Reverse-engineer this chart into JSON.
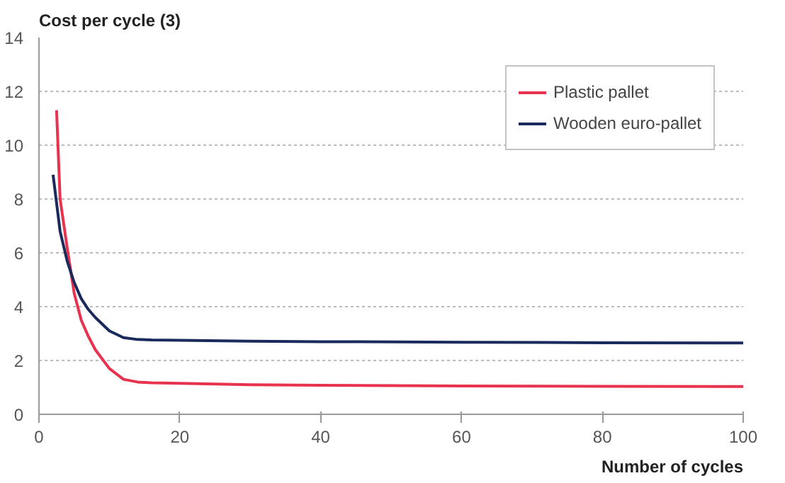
{
  "chart_data": {
    "type": "line",
    "ylabel": "Cost per cycle (3)",
    "xlabel": "Number of cycles",
    "xlim": [
      0,
      100
    ],
    "ylim": [
      0,
      14
    ],
    "xticks": [
      0,
      20,
      40,
      60,
      80,
      100
    ],
    "yticks": [
      0,
      2,
      4,
      6,
      8,
      10,
      12,
      14
    ],
    "grid": "y",
    "legend": "top right",
    "line_style": "solid",
    "series": [
      {
        "name": "Plastic pallet",
        "color": "#e8334f",
        "x": [
          2.5,
          3,
          4,
          5,
          6,
          7,
          8,
          10,
          12,
          14,
          16,
          20,
          30,
          40,
          60,
          80,
          100
        ],
        "values": [
          11.3,
          8.0,
          6.2,
          4.5,
          3.5,
          2.9,
          2.4,
          1.7,
          1.3,
          1.2,
          1.17,
          1.15,
          1.1,
          1.08,
          1.05,
          1.04,
          1.03
        ]
      },
      {
        "name": "Wooden euro-pallet",
        "color": "#1b2a5c",
        "x": [
          2,
          3,
          4,
          5,
          6,
          7,
          8,
          10,
          12,
          14,
          16,
          20,
          30,
          40,
          60,
          80,
          100
        ],
        "values": [
          8.9,
          6.8,
          5.7,
          4.9,
          4.3,
          3.9,
          3.6,
          3.1,
          2.85,
          2.78,
          2.76,
          2.75,
          2.72,
          2.7,
          2.68,
          2.66,
          2.65
        ]
      }
    ]
  }
}
